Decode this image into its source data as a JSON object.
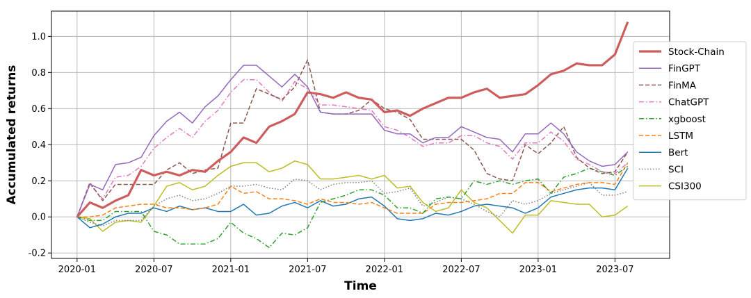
{
  "chart_data": {
    "type": "line",
    "xlabel": "Time",
    "ylabel": "Accumulated returns",
    "x_ticks": [
      "2020-01",
      "2020-07",
      "2021-01",
      "2021-07",
      "2022-01",
      "2022-07",
      "2023-01",
      "2023-07"
    ],
    "y_ticks": [
      "-0.2",
      "0.0",
      "0.2",
      "0.4",
      "0.6",
      "0.8",
      "1.0"
    ],
    "ylim": [
      -0.23,
      1.14
    ],
    "x": [
      "2020-01",
      "2020-02",
      "2020-03",
      "2020-04",
      "2020-05",
      "2020-06",
      "2020-07",
      "2020-08",
      "2020-09",
      "2020-10",
      "2020-11",
      "2020-12",
      "2021-01",
      "2021-02",
      "2021-03",
      "2021-04",
      "2021-05",
      "2021-06",
      "2021-07",
      "2021-08",
      "2021-09",
      "2021-10",
      "2021-11",
      "2021-12",
      "2022-01",
      "2022-02",
      "2022-03",
      "2022-04",
      "2022-05",
      "2022-06",
      "2022-07",
      "2022-08",
      "2022-09",
      "2022-10",
      "2022-11",
      "2022-12",
      "2023-01",
      "2023-02",
      "2023-03",
      "2023-04",
      "2023-05",
      "2023-06",
      "2023-07",
      "2023-08"
    ],
    "grid": true,
    "legend_position": "right",
    "series": [
      {
        "name": "Stock-Chain",
        "color": "#cd5c5c",
        "style": "solid",
        "width": 3.2,
        "values": [
          0.0,
          0.08,
          0.05,
          0.09,
          0.12,
          0.26,
          0.23,
          0.25,
          0.23,
          0.26,
          0.25,
          0.31,
          0.36,
          0.44,
          0.41,
          0.5,
          0.53,
          0.57,
          0.69,
          0.68,
          0.66,
          0.69,
          0.66,
          0.65,
          0.58,
          0.59,
          0.56,
          0.6,
          0.63,
          0.66,
          0.66,
          0.69,
          0.71,
          0.66,
          0.67,
          0.68,
          0.73,
          0.79,
          0.81,
          0.85,
          0.84,
          0.84,
          0.9,
          1.08
        ]
      },
      {
        "name": "FinGPT",
        "color": "#9467bd",
        "style": "solid",
        "width": 1.5,
        "values": [
          0.0,
          0.18,
          0.15,
          0.29,
          0.3,
          0.33,
          0.45,
          0.53,
          0.58,
          0.52,
          0.61,
          0.67,
          0.76,
          0.84,
          0.84,
          0.78,
          0.72,
          0.79,
          0.72,
          0.58,
          0.57,
          0.57,
          0.57,
          0.57,
          0.48,
          0.46,
          0.46,
          0.41,
          0.44,
          0.44,
          0.5,
          0.47,
          0.44,
          0.43,
          0.36,
          0.46,
          0.46,
          0.52,
          0.46,
          0.36,
          0.31,
          0.28,
          0.29,
          0.36
        ]
      },
      {
        "name": "FinMA",
        "color": "#8c564b",
        "style": "dash",
        "width": 1.5,
        "values": [
          0.0,
          0.19,
          0.09,
          0.18,
          0.18,
          0.18,
          0.18,
          0.26,
          0.3,
          0.24,
          0.26,
          0.27,
          0.52,
          0.52,
          0.71,
          0.68,
          0.65,
          0.72,
          0.87,
          0.58,
          0.57,
          0.57,
          0.59,
          0.65,
          0.6,
          0.58,
          0.54,
          0.43,
          0.43,
          0.43,
          0.43,
          0.37,
          0.24,
          0.21,
          0.2,
          0.4,
          0.35,
          0.41,
          0.5,
          0.33,
          0.27,
          0.24,
          0.25,
          0.36
        ]
      },
      {
        "name": "ChatGPT",
        "color": "#e377c2",
        "style": "dashdot",
        "width": 1.5,
        "values": [
          0.0,
          0.18,
          0.1,
          0.22,
          0.23,
          0.28,
          0.38,
          0.44,
          0.49,
          0.44,
          0.53,
          0.59,
          0.69,
          0.76,
          0.76,
          0.69,
          0.64,
          0.75,
          0.71,
          0.62,
          0.62,
          0.61,
          0.6,
          0.59,
          0.5,
          0.48,
          0.44,
          0.39,
          0.41,
          0.41,
          0.45,
          0.45,
          0.41,
          0.39,
          0.32,
          0.41,
          0.41,
          0.47,
          0.42,
          0.32,
          0.29,
          0.25,
          0.24,
          0.3
        ]
      },
      {
        "name": "xgboost",
        "color": "#2ca02c",
        "style": "dashdot",
        "width": 1.5,
        "values": [
          0.0,
          -0.02,
          -0.02,
          0.03,
          0.03,
          0.03,
          -0.08,
          -0.1,
          -0.15,
          -0.15,
          -0.15,
          -0.12,
          -0.03,
          -0.09,
          -0.12,
          -0.17,
          -0.09,
          -0.1,
          -0.06,
          0.08,
          0.1,
          0.12,
          0.15,
          0.15,
          0.12,
          0.05,
          0.05,
          0.02,
          0.1,
          0.11,
          0.1,
          0.2,
          0.18,
          0.2,
          0.18,
          0.2,
          0.21,
          0.13,
          0.22,
          0.24,
          0.27,
          0.25,
          0.23,
          0.28
        ]
      },
      {
        "name": "LSTM",
        "color": "#ff7f0e",
        "style": "dash",
        "width": 1.5,
        "values": [
          0.0,
          0.0,
          0.01,
          0.05,
          0.06,
          0.07,
          0.07,
          0.05,
          0.05,
          0.04,
          0.05,
          0.07,
          0.17,
          0.13,
          0.14,
          0.1,
          0.1,
          0.09,
          0.07,
          0.1,
          0.08,
          0.08,
          0.07,
          0.08,
          0.05,
          0.02,
          0.02,
          0.02,
          0.07,
          0.08,
          0.08,
          0.09,
          0.1,
          0.13,
          0.13,
          0.19,
          0.19,
          0.14,
          0.16,
          0.18,
          0.19,
          0.19,
          0.18,
          0.3
        ]
      },
      {
        "name": "Bert",
        "color": "#1f77b4",
        "style": "solid",
        "width": 1.5,
        "values": [
          0.0,
          -0.06,
          -0.04,
          0.0,
          0.02,
          0.02,
          0.05,
          0.03,
          0.06,
          0.04,
          0.05,
          0.03,
          0.03,
          0.07,
          0.01,
          0.02,
          0.06,
          0.08,
          0.05,
          0.09,
          0.06,
          0.07,
          0.1,
          0.11,
          0.06,
          -0.01,
          -0.02,
          -0.01,
          0.02,
          0.01,
          0.03,
          0.06,
          0.07,
          0.06,
          0.05,
          0.02,
          0.05,
          0.11,
          0.13,
          0.15,
          0.16,
          0.16,
          0.15,
          0.27
        ]
      },
      {
        "name": "SCI",
        "color": "#7f7f7f",
        "style": "dot",
        "width": 1.5,
        "values": [
          0.0,
          -0.03,
          -0.05,
          -0.02,
          -0.02,
          -0.02,
          0.06,
          0.1,
          0.12,
          0.09,
          0.1,
          0.13,
          0.17,
          0.17,
          0.18,
          0.16,
          0.15,
          0.21,
          0.2,
          0.15,
          0.18,
          0.19,
          0.19,
          0.2,
          0.13,
          0.14,
          0.16,
          0.06,
          0.08,
          0.11,
          0.1,
          0.07,
          0.03,
          0.0,
          0.09,
          0.07,
          0.09,
          0.13,
          0.15,
          0.17,
          0.19,
          0.12,
          0.12,
          0.14
        ]
      },
      {
        "name": "CSI300",
        "color": "#bcbd22",
        "style": "solid",
        "width": 1.5,
        "values": [
          0.0,
          -0.01,
          -0.08,
          -0.03,
          -0.02,
          -0.03,
          0.06,
          0.17,
          0.19,
          0.15,
          0.17,
          0.23,
          0.28,
          0.3,
          0.3,
          0.25,
          0.27,
          0.31,
          0.29,
          0.21,
          0.21,
          0.22,
          0.23,
          0.21,
          0.23,
          0.16,
          0.17,
          0.08,
          0.03,
          0.05,
          0.15,
          0.08,
          0.05,
          -0.02,
          -0.09,
          0.01,
          0.01,
          0.09,
          0.08,
          0.07,
          0.07,
          0.0,
          0.01,
          0.06
        ]
      }
    ]
  }
}
